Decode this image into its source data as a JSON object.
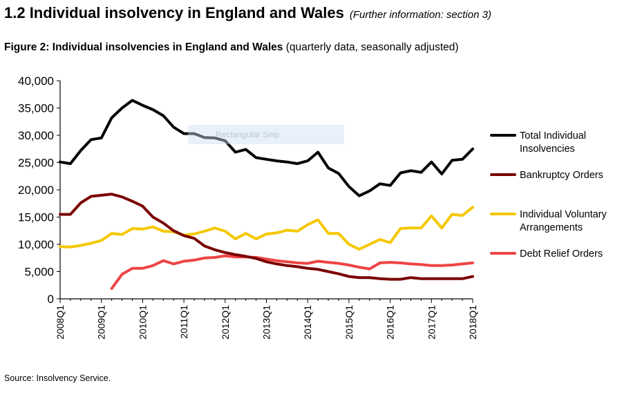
{
  "header": {
    "section_title": "1.2 Individual insolvency in England and Wales",
    "section_note": "(Further information: section 3)",
    "figure_title_bold": "Figure 2: Individual insolvencies in England and Wales",
    "figure_title_rest": "(quarterly data, seasonally adjusted)"
  },
  "overlay": {
    "snip_label": "Rectangular Snip"
  },
  "footer": {
    "source": "Source: Insolvency Service."
  },
  "chart_data": {
    "type": "line",
    "xlabel": "",
    "ylabel": "",
    "ylim": [
      0,
      40000
    ],
    "yticks": [
      "0",
      "5,000",
      "10,000",
      "15,000",
      "20,000",
      "25,000",
      "30,000",
      "35,000",
      "40,000"
    ],
    "xticks": [
      "2008Q1",
      "2009Q1",
      "2010Q1",
      "2011Q1",
      "2012Q1",
      "2013Q1",
      "2014Q1",
      "2015Q1",
      "2016Q1",
      "2017Q1",
      "2018Q1"
    ],
    "x": [
      "2008Q1",
      "2008Q2",
      "2008Q3",
      "2008Q4",
      "2009Q1",
      "2009Q2",
      "2009Q3",
      "2009Q4",
      "2010Q1",
      "2010Q2",
      "2010Q3",
      "2010Q4",
      "2011Q1",
      "2011Q2",
      "2011Q3",
      "2011Q4",
      "2012Q1",
      "2012Q2",
      "2012Q3",
      "2012Q4",
      "2013Q1",
      "2013Q2",
      "2013Q3",
      "2013Q4",
      "2014Q1",
      "2014Q2",
      "2014Q3",
      "2014Q4",
      "2015Q1",
      "2015Q2",
      "2015Q3",
      "2015Q4",
      "2016Q1",
      "2016Q2",
      "2016Q3",
      "2016Q4",
      "2017Q1",
      "2017Q2",
      "2017Q3",
      "2017Q4",
      "2018Q1"
    ],
    "grid": false,
    "legend_position": "right",
    "series": [
      {
        "name": "Total Individual Insolvencies",
        "color": "#000000",
        "values": [
          25100,
          24800,
          27200,
          29200,
          29500,
          33200,
          35000,
          36400,
          35500,
          34700,
          33600,
          31500,
          30300,
          30300,
          29600,
          29500,
          29000,
          26900,
          27400,
          25900,
          25600,
          25300,
          25100,
          24800,
          25300,
          26900,
          24000,
          23000,
          20600,
          18900,
          19800,
          21100,
          20800,
          23100,
          23500,
          23200,
          25100,
          22900,
          25400,
          25600,
          27500
        ]
      },
      {
        "name": "Bankruptcy Orders",
        "color": "#7a0000",
        "values": [
          15500,
          15500,
          17600,
          18800,
          19000,
          19200,
          18700,
          17900,
          17000,
          15000,
          13900,
          12500,
          11600,
          11100,
          9700,
          9000,
          8500,
          8100,
          7800,
          7400,
          6800,
          6400,
          6100,
          5900,
          5600,
          5400,
          5000,
          4600,
          4100,
          3900,
          3900,
          3700,
          3600,
          3600,
          3900,
          3700,
          3700,
          3700,
          3700,
          3700,
          4100
        ]
      },
      {
        "name": "Individual Voluntary Arrangements",
        "color": "#f5c800",
        "values": [
          9600,
          9500,
          9800,
          10200,
          10700,
          12000,
          11800,
          12900,
          12800,
          13200,
          12400,
          12300,
          11700,
          11900,
          12400,
          13000,
          12400,
          11000,
          12000,
          11000,
          11900,
          12100,
          12600,
          12400,
          13600,
          14500,
          12000,
          12000,
          10000,
          9100,
          10000,
          10900,
          10300,
          12900,
          13000,
          13000,
          15200,
          13000,
          15500,
          15300,
          16800
        ]
      },
      {
        "name": "Debt Relief Orders",
        "color": "#ee4444",
        "values": [
          null,
          null,
          null,
          null,
          null,
          1900,
          4500,
          5600,
          5600,
          6100,
          7000,
          6400,
          6900,
          7100,
          7500,
          7600,
          7900,
          7700,
          7700,
          7600,
          7300,
          7000,
          6800,
          6600,
          6500,
          6900,
          6700,
          6500,
          6200,
          5800,
          5500,
          6600,
          6700,
          6600,
          6400,
          6300,
          6100,
          6100,
          6200,
          6400,
          6600
        ]
      }
    ]
  }
}
